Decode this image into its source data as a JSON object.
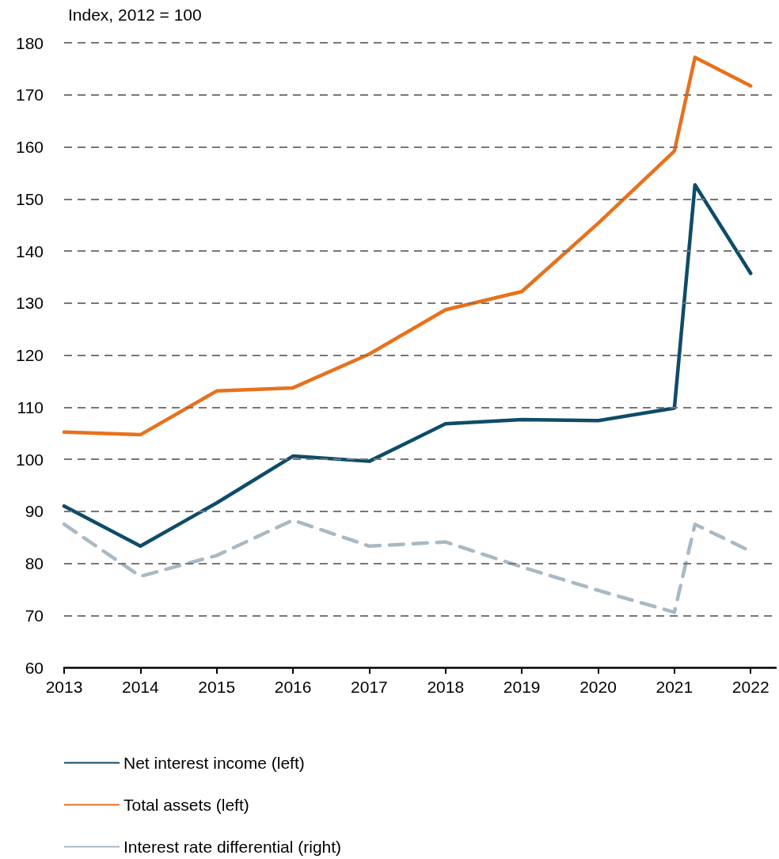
{
  "chart_data": {
    "type": "line",
    "ylabel": "Index, 2012 = 100",
    "xlim": [
      2013,
      2022.33
    ],
    "xticks": [
      2013,
      2014,
      2015,
      2016,
      2017,
      2018,
      2019,
      2020,
      2021,
      2022
    ],
    "ylim": [
      60,
      180
    ],
    "yticks": [
      60,
      70,
      80,
      90,
      100,
      110,
      120,
      130,
      140,
      150,
      160,
      170,
      180
    ],
    "grid": "y",
    "legend": "bottom",
    "marker": "none",
    "series": [
      {
        "name": "Net interest income (left)",
        "color": "#0e4c68",
        "line_style": "solid",
        "x": [
          2013,
          2014,
          2015,
          2016,
          2017,
          2018,
          2019,
          2020,
          2021,
          2021.27,
          2022
        ],
        "values": [
          91,
          83.3,
          91.6,
          100.6,
          99.6,
          106.8,
          107.6,
          107.4,
          109.8,
          152.7,
          135.7
        ]
      },
      {
        "name": "Total assets (left)",
        "color": "#e8711c",
        "line_style": "solid",
        "x": [
          2013,
          2014,
          2015,
          2016,
          2017,
          2018,
          2019,
          2020,
          2021,
          2021.27,
          2022
        ],
        "values": [
          105.2,
          104.7,
          113.1,
          113.7,
          120.2,
          128.7,
          132.2,
          145.3,
          159.2,
          177.2,
          171.7
        ]
      },
      {
        "name": "Interest rate differential (right)",
        "color": "#a9b9c4",
        "line_style": "dashed",
        "x": [
          2013,
          2014,
          2015,
          2016,
          2017,
          2018,
          2019,
          2020,
          2021,
          2021.27,
          2022
        ],
        "values": [
          87.5,
          77.5,
          81.5,
          88.3,
          83.3,
          84.1,
          79.3,
          74.8,
          70.6,
          87.5,
          82.3
        ]
      }
    ]
  }
}
